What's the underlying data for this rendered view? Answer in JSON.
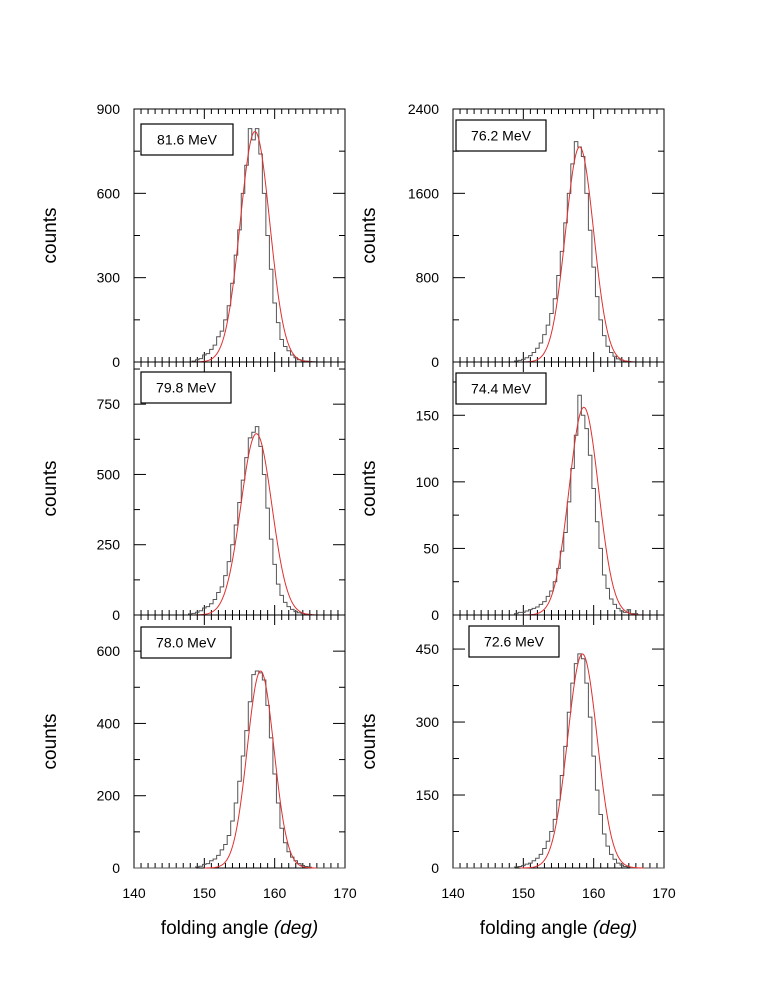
{
  "chart_data": [
    {
      "type": "line",
      "label": "81.6 MeV",
      "xlabel": "",
      "ylabel": "counts",
      "xlim": [
        140,
        170
      ],
      "ylim": [
        0,
        900
      ],
      "yticks": [
        0,
        300,
        600,
        900
      ],
      "yticklabels": [
        "0",
        "300",
        "600",
        "900"
      ],
      "xticks": [
        140,
        150,
        160,
        170
      ],
      "xticklabels": [],
      "mu": 157.2,
      "sigma": 2.1,
      "amp": 820,
      "hist_x": [
        148.5,
        149,
        149.5,
        150,
        150.5,
        151,
        151.5,
        152,
        152.5,
        153,
        153.5,
        154,
        154.5,
        155,
        155.5,
        156,
        156.5,
        157,
        157.5,
        158,
        158.5,
        159,
        159.5,
        160,
        160.5,
        161,
        161.5,
        162,
        162.5,
        163,
        163.5,
        164,
        164.5,
        165,
        165.5
      ],
      "hist_y": [
        3,
        8,
        12,
        25,
        30,
        45,
        60,
        90,
        110,
        150,
        200,
        280,
        380,
        470,
        600,
        700,
        830,
        790,
        830,
        740,
        600,
        450,
        330,
        210,
        140,
        80,
        55,
        40,
        25,
        15,
        8,
        4,
        3,
        2,
        1
      ]
    },
    {
      "type": "line",
      "label": "79.8 MeV",
      "xlabel": "",
      "ylabel": "counts",
      "xlim": [
        140,
        170
      ],
      "ylim": [
        0,
        900
      ],
      "yticks": [
        0,
        250,
        500,
        750
      ],
      "yticklabels": [
        "0",
        "250",
        "500",
        "750"
      ],
      "xticks": [
        140,
        150,
        160,
        170
      ],
      "xticklabels": [],
      "mu": 157.4,
      "sigma": 2.2,
      "amp": 645,
      "hist_x": [
        148,
        148.5,
        149,
        149.5,
        150,
        150.5,
        151,
        151.5,
        152,
        152.5,
        153,
        153.5,
        154,
        154.5,
        155,
        155.5,
        156,
        156.5,
        157,
        157.5,
        158,
        158.5,
        159,
        159.5,
        160,
        160.5,
        161,
        161.5,
        162,
        162.5,
        163,
        163.5,
        164,
        164.5,
        165
      ],
      "hist_y": [
        4,
        6,
        10,
        15,
        25,
        30,
        40,
        55,
        80,
        100,
        140,
        190,
        250,
        320,
        400,
        480,
        560,
        630,
        650,
        670,
        600,
        500,
        380,
        270,
        180,
        110,
        70,
        45,
        30,
        20,
        12,
        8,
        5,
        3,
        2
      ]
    },
    {
      "type": "line",
      "label": "78.0 MeV",
      "xlabel": "folding angle",
      "xlabel_unit": "(deg)",
      "ylabel": "counts",
      "xlim": [
        140,
        170
      ],
      "ylim": [
        0,
        700
      ],
      "yticks": [
        0,
        200,
        400,
        600
      ],
      "yticklabels": [
        "0",
        "200",
        "400",
        "600"
      ],
      "xticks": [
        140,
        150,
        160,
        170
      ],
      "xticklabels": [
        "140",
        "150",
        "160",
        "170"
      ],
      "mu": 158.0,
      "sigma": 1.9,
      "amp": 545,
      "hist_x": [
        149,
        149.5,
        150,
        150.5,
        151,
        151.5,
        152,
        152.5,
        153,
        153.5,
        154,
        154.5,
        155,
        155.5,
        156,
        156.5,
        157,
        157.5,
        158,
        158.5,
        159,
        159.5,
        160,
        160.5,
        161,
        161.5,
        162,
        162.5,
        163,
        163.5,
        164,
        164.5,
        165
      ],
      "hist_y": [
        3,
        5,
        10,
        12,
        20,
        25,
        35,
        50,
        65,
        90,
        130,
        180,
        240,
        310,
        380,
        460,
        535,
        545,
        540,
        520,
        450,
        360,
        260,
        180,
        110,
        70,
        45,
        30,
        20,
        12,
        7,
        4,
        2
      ]
    },
    {
      "type": "line",
      "label": "76.2 MeV",
      "xlabel": "",
      "ylabel": "counts",
      "xlim": [
        140,
        170
      ],
      "ylim": [
        0,
        2400
      ],
      "yticks": [
        0,
        800,
        1600,
        2400
      ],
      "yticklabels": [
        "0",
        "800",
        "1600",
        "2400"
      ],
      "xticks": [
        140,
        150,
        160,
        170
      ],
      "xticklabels": [],
      "mu": 158.0,
      "sigma": 2.0,
      "amp": 2040,
      "hist_x": [
        149,
        149.5,
        150,
        150.5,
        151,
        151.5,
        152,
        152.5,
        153,
        153.5,
        154,
        154.5,
        155,
        155.5,
        156,
        156.5,
        157,
        157.5,
        158,
        158.5,
        159,
        159.5,
        160,
        160.5,
        161,
        161.5,
        162,
        162.5,
        163,
        163.5,
        164,
        164.5,
        165
      ],
      "hist_y": [
        10,
        15,
        25,
        40,
        60,
        90,
        130,
        180,
        260,
        350,
        460,
        600,
        820,
        1050,
        1320,
        1600,
        1880,
        2090,
        2040,
        1950,
        1600,
        1250,
        900,
        620,
        400,
        250,
        150,
        90,
        55,
        30,
        18,
        10,
        5
      ]
    },
    {
      "type": "line",
      "label": "74.4 MeV",
      "xlabel": "",
      "ylabel": "counts",
      "xlim": [
        140,
        170
      ],
      "ylim": [
        0,
        190
      ],
      "yticks": [
        0,
        50,
        100,
        150
      ],
      "yticklabels": [
        "0",
        "50",
        "100",
        "150"
      ],
      "xticks": [
        140,
        150,
        160,
        170
      ],
      "xticklabels": [],
      "mu": 158.6,
      "sigma": 2.1,
      "amp": 156,
      "hist_x": [
        149,
        149.5,
        150,
        150.5,
        151,
        151.5,
        152,
        152.5,
        153,
        153.5,
        154,
        154.5,
        155,
        155.5,
        156,
        156.5,
        157,
        157.5,
        158,
        158.5,
        159,
        159.5,
        160,
        160.5,
        161,
        161.5,
        162,
        162.5,
        163,
        163.5,
        164,
        164.5,
        165,
        165.5,
        166
      ],
      "hist_y": [
        1,
        2,
        2,
        3,
        4,
        5,
        6,
        8,
        10,
        14,
        18,
        25,
        35,
        48,
        62,
        85,
        110,
        135,
        165,
        150,
        140,
        120,
        95,
        70,
        50,
        30,
        20,
        12,
        8,
        5,
        3,
        2,
        4,
        1,
        1
      ]
    },
    {
      "type": "line",
      "label": "72.6 MeV",
      "xlabel": "folding angle",
      "xlabel_unit": "(deg)",
      "ylabel": "counts",
      "xlim": [
        140,
        170
      ],
      "ylim": [
        0,
        520
      ],
      "yticks": [
        0,
        150,
        300,
        450
      ],
      "yticklabels": [
        "0",
        "150",
        "300",
        "450"
      ],
      "xticks": [
        140,
        150,
        160,
        170
      ],
      "xticklabels": [
        "140",
        "150",
        "160",
        "170"
      ],
      "mu": 158.4,
      "sigma": 2.1,
      "amp": 440,
      "hist_x": [
        149,
        149.5,
        150,
        150.5,
        151,
        151.5,
        152,
        152.5,
        153,
        153.5,
        154,
        154.5,
        155,
        155.5,
        156,
        156.5,
        157,
        157.5,
        158,
        158.5,
        159,
        159.5,
        160,
        160.5,
        161,
        161.5,
        162,
        162.5,
        163,
        163.5,
        164,
        164.5,
        165
      ],
      "hist_y": [
        2,
        3,
        5,
        8,
        10,
        15,
        20,
        28,
        40,
        55,
        75,
        100,
        140,
        190,
        250,
        320,
        380,
        420,
        440,
        430,
        380,
        310,
        230,
        160,
        110,
        70,
        45,
        28,
        18,
        10,
        6,
        3,
        2
      ]
    }
  ]
}
